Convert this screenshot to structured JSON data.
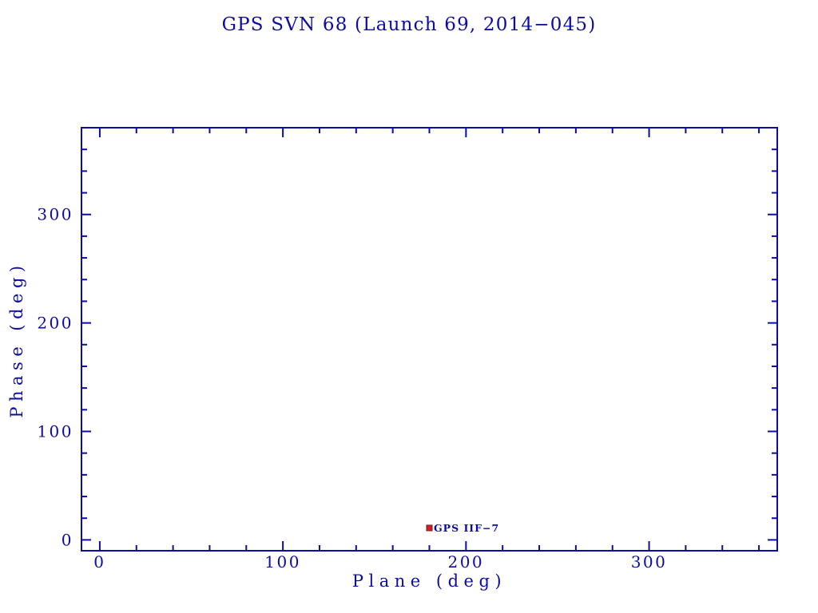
{
  "page": {
    "background_color": "#ffffff"
  },
  "chart_data": {
    "type": "scatter",
    "title": "GPS SVN 68 (Launch 69, 2014−045)",
    "xlabel": "Plane (deg)",
    "ylabel": "Phase (deg)",
    "xlim": [
      -10,
      370
    ],
    "ylim": [
      -10,
      380
    ],
    "x_major_ticks": [
      0,
      100,
      200,
      300
    ],
    "y_major_ticks": [
      0,
      100,
      200,
      300
    ],
    "minor_tick_step": 20,
    "grid": false,
    "legend_position": "none",
    "axis_color": "#0c0ca3",
    "tick_label_color": "#0c0ca3",
    "series": [
      {
        "name": "GPS IIF−7",
        "marker": "filled-square",
        "marker_color": "#cf2222",
        "marker_edge_color": "#8a1414",
        "label_color": "#0c0ca3",
        "points": [
          {
            "x": 180,
            "y": 11,
            "label": "GPS IIF−7"
          }
        ]
      }
    ]
  }
}
